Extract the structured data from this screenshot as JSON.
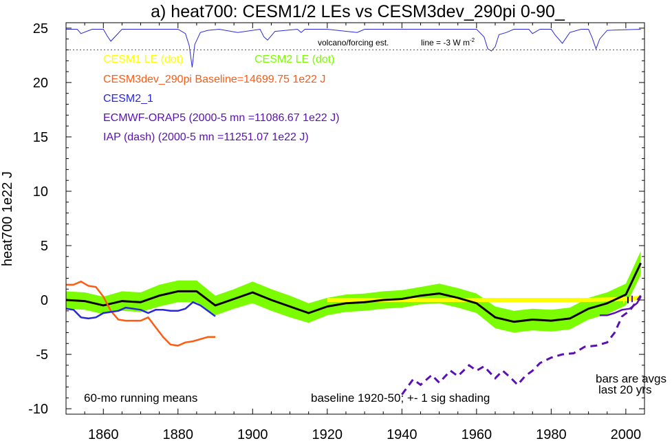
{
  "chart_data": {
    "type": "line",
    "title": "a) heat700: CESM1/2 LEs vs CESM3dev_290pi 0-90_",
    "ylabel": "heat700 1e22 J",
    "xlabel": "",
    "xlim": [
      1850,
      2005
    ],
    "ylim": [
      -10.5,
      25.5
    ],
    "x_ticks": [
      1860,
      1880,
      1900,
      1920,
      1940,
      1960,
      1980,
      2000
    ],
    "y_ticks": [
      -10,
      -5,
      0,
      5,
      10,
      15,
      20,
      25
    ],
    "y_tick_labels": [
      "-10",
      "-5",
      "0",
      "5",
      "10",
      "15",
      "20",
      "25"
    ],
    "grid": false,
    "legend_placement": "top-left",
    "colors": {
      "cesm1": "#ffff00",
      "cesm2": "#7cfc00",
      "cesm3dev": "#ff5a10",
      "cesm2_1": "#2828d8",
      "orap5": "#5a10b4",
      "iap": "#5a10b4",
      "volcano": "#2828d8",
      "ensemble_mean": "#000000",
      "shading": "#7cfc00"
    },
    "legend": [
      {
        "text": "CESM1 LE (dot)",
        "color": "#ffff00"
      },
      {
        "text": "CESM2 LE (dot)",
        "color": "#7cfc00"
      },
      {
        "text": "CESM3dev_290pi Baseline=14699.75 1e22 J",
        "color": "#ff5a10"
      },
      {
        "text": "CESM2_1",
        "color": "#2828d8"
      },
      {
        "text": "ECMWF-ORAP5 (2000-5 mn =11086.67 1e22 J)",
        "color": "#5a10b4"
      },
      {
        "text": "IAP (dash) (2000-5 mn =11251.07 1e22 J)",
        "color": "#5a10b4"
      }
    ],
    "annotations": {
      "running_means": "60-mo running means",
      "baseline": "baseline 1920-50; +- 1 sig shading",
      "bars_line1": "bars are avgs",
      "bars_line2": "last 20 yrs",
      "volcano": "volcano/forcing est.",
      "line_scale": "line = -3 W m",
      "line_scale_sup": "-2"
    },
    "volcano_dotted_line_y": 23,
    "series": [
      {
        "name": "CESM2 LE (dot)",
        "role": "ensemble_mean",
        "x": [
          1850,
          1855,
          1860,
          1865,
          1870,
          1875,
          1880,
          1885,
          1890,
          1895,
          1900,
          1905,
          1910,
          1915,
          1920,
          1925,
          1930,
          1935,
          1940,
          1945,
          1950,
          1955,
          1960,
          1965,
          1970,
          1975,
          1980,
          1985,
          1990,
          1995,
          2000,
          2004
        ],
        "y": [
          0.0,
          -0.1,
          -0.5,
          -0.1,
          -0.2,
          0.4,
          0.8,
          0.8,
          -0.5,
          0.1,
          0.7,
          0.0,
          -0.6,
          -1.2,
          -0.6,
          -0.3,
          -0.2,
          0.0,
          0.1,
          0.4,
          0.6,
          0.2,
          -0.3,
          -1.6,
          -2.0,
          -1.8,
          -1.9,
          -1.7,
          -0.8,
          -0.3,
          0.5,
          3.4
        ],
        "spread": [
          0.8,
          0.8,
          0.8,
          0.9,
          0.9,
          1.0,
          1.0,
          1.0,
          0.9,
          0.9,
          1.0,
          1.0,
          1.0,
          0.9,
          0.8,
          0.8,
          0.8,
          0.8,
          0.8,
          0.8,
          0.9,
          0.9,
          0.9,
          1.0,
          1.0,
          1.0,
          1.0,
          1.0,
          1.0,
          1.0,
          1.0,
          1.1
        ]
      },
      {
        "name": "CESM1 LE (dot)",
        "x": [
          1920,
          1930,
          1940,
          1950,
          1960,
          1970,
          1980,
          1990,
          2000,
          2004
        ],
        "y": [
          0.0,
          0.0,
          0.0,
          0.0,
          0.0,
          0.0,
          0.0,
          0.0,
          0.1,
          0.2
        ]
      },
      {
        "name": "CESM3dev_290pi",
        "x": [
          1850,
          1852,
          1854,
          1856,
          1858,
          1860,
          1862,
          1864,
          1866,
          1868,
          1870,
          1872,
          1874,
          1876,
          1878,
          1880,
          1882,
          1884,
          1886,
          1888,
          1890
        ],
        "y": [
          1.4,
          1.4,
          1.7,
          1.3,
          1.2,
          0.3,
          -1.0,
          -1.8,
          -1.9,
          -1.9,
          -1.9,
          -1.6,
          -2.5,
          -3.4,
          -4.1,
          -4.2,
          -3.9,
          -3.8,
          -3.6,
          -3.4,
          -3.4
        ]
      },
      {
        "name": "CESM2_1",
        "x": [
          1850,
          1852,
          1854,
          1856,
          1858,
          1860,
          1862,
          1864,
          1866,
          1868,
          1870,
          1872,
          1874,
          1876,
          1878,
          1880,
          1882,
          1884,
          1886,
          1888,
          1890
        ],
        "y": [
          -0.8,
          -0.9,
          -1.6,
          -1.7,
          -1.6,
          -1.2,
          -1.1,
          -1.0,
          -0.7,
          -0.8,
          -0.9,
          -1.2,
          -0.9,
          -0.9,
          -1.0,
          -1.0,
          -0.8,
          -0.2,
          -0.5,
          -1.0,
          -1.5
        ]
      },
      {
        "name": "ECMWF-ORAP5",
        "x": [
          1993,
          1995,
          1997,
          1999,
          2001,
          2003,
          2004
        ],
        "y": [
          -1.4,
          -1.4,
          -1.2,
          -0.9,
          -0.8,
          -0.3,
          0.3
        ]
      },
      {
        "name": "IAP (dash)",
        "x": [
          1940,
          1943,
          1945,
          1948,
          1950,
          1953,
          1955,
          1958,
          1960,
          1962,
          1965,
          1967,
          1969,
          1971,
          1973,
          1975,
          1977,
          1980,
          1983,
          1986,
          1989,
          1992,
          1995,
          1997,
          1999,
          2001,
          2004
        ],
        "y": [
          -8.7,
          -7.3,
          -7.8,
          -6.9,
          -7.6,
          -6.5,
          -7.0,
          -6.0,
          -6.5,
          -6.1,
          -7.2,
          -6.5,
          -7.1,
          -7.8,
          -7.0,
          -6.5,
          -5.8,
          -5.3,
          -5.0,
          -4.9,
          -4.3,
          -4.2,
          -3.9,
          -3.0,
          -1.5,
          -1.0,
          0.4
        ]
      },
      {
        "name": "volcano/forcing est.",
        "x": [
          1850,
          1853,
          1854,
          1857,
          1860,
          1861,
          1862,
          1865,
          1880,
          1882,
          1883,
          1883.8,
          1884.5,
          1886,
          1888,
          1891,
          1896,
          1902,
          1903,
          1904,
          1906,
          1912,
          1913,
          1914,
          1920,
          1928,
          1930,
          1932,
          1945,
          1955,
          1960,
          1962,
          1963,
          1964,
          1965,
          1966,
          1968,
          1970,
          1974,
          1975,
          1977,
          1980,
          1981,
          1982,
          1983,
          1985,
          1988,
          1990,
          1991,
          1992,
          1993,
          1995,
          2004
        ],
        "y": [
          24.9,
          24.9,
          24.5,
          24.9,
          24.9,
          24.3,
          23.8,
          24.9,
          24.9,
          24.5,
          23.4,
          21.4,
          23.5,
          24.6,
          24.8,
          24.9,
          24.6,
          24.9,
          24.2,
          23.9,
          24.7,
          24.9,
          24.6,
          24.9,
          24.9,
          24.6,
          24.9,
          24.9,
          24.9,
          24.9,
          24.9,
          24.2,
          23.1,
          22.9,
          23.3,
          24.4,
          24.6,
          24.9,
          24.9,
          24.5,
          24.9,
          24.9,
          24.4,
          24.0,
          23.6,
          24.6,
          24.9,
          24.9,
          24.1,
          23.1,
          24.0,
          24.8,
          24.9
        ]
      }
    ]
  }
}
